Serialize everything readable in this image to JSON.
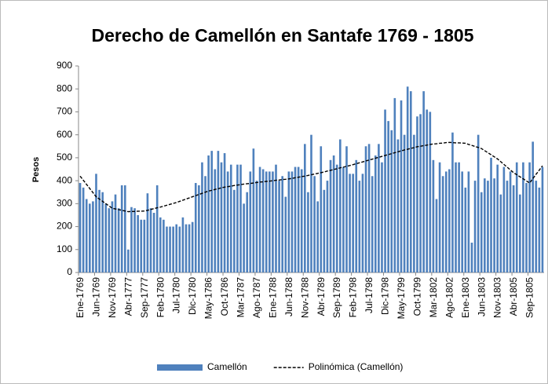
{
  "chart_data": {
    "type": "bar",
    "title": "Derecho de Camellón en Santafe 1769 - 1805",
    "y_label": "Pesos",
    "categories": [
      "Ene-1769",
      null,
      null,
      null,
      null,
      "Jun-1769",
      null,
      null,
      null,
      null,
      "Nov-1769",
      null,
      null,
      null,
      null,
      "Abr-1777",
      null,
      null,
      null,
      null,
      "Sep-1777",
      null,
      null,
      null,
      null,
      "Feb-1780",
      null,
      null,
      null,
      null,
      "Jul-1780",
      null,
      null,
      null,
      null,
      "Dic-1780",
      null,
      null,
      null,
      null,
      "May-1786",
      null,
      null,
      null,
      null,
      "Oct-1786",
      null,
      null,
      null,
      null,
      "Mar-1787",
      null,
      null,
      null,
      null,
      "Ago-1787",
      null,
      null,
      null,
      null,
      "Ene-1788",
      null,
      null,
      null,
      null,
      "Jun-1788",
      null,
      null,
      null,
      null,
      "Nov-1788",
      null,
      null,
      null,
      null,
      "Abr-1789",
      null,
      null,
      null,
      null,
      "Sep-1789",
      null,
      null,
      null,
      null,
      "Feb-1798",
      null,
      null,
      null,
      null,
      "Jul-1798",
      null,
      null,
      null,
      null,
      "Dic-1798",
      null,
      null,
      null,
      null,
      "May-1799",
      null,
      null,
      null,
      null,
      "Oct-1799",
      null,
      null,
      null,
      null,
      "Mar-1802",
      null,
      null,
      null,
      null,
      "Ago-1802",
      null,
      null,
      null,
      null,
      "Ene-1803",
      null,
      null,
      null,
      null,
      "Jun-1803",
      null,
      null,
      null,
      null,
      "Nov-1803",
      null,
      null,
      null,
      null,
      "Abr-1805",
      null,
      null,
      null,
      null,
      "Sep-1805",
      null,
      null,
      null,
      null
    ],
    "series": [
      {
        "name": "Camellón",
        "type": "bar",
        "color": "#4f81bd",
        "values": [
          390,
          370,
          320,
          300,
          310,
          430,
          360,
          350,
          300,
          280,
          310,
          340,
          280,
          380,
          380,
          100,
          285,
          280,
          250,
          230,
          230,
          345,
          280,
          260,
          380,
          240,
          230,
          200,
          200,
          200,
          210,
          200,
          240,
          210,
          210,
          220,
          390,
          380,
          480,
          420,
          510,
          530,
          450,
          530,
          480,
          520,
          440,
          470,
          360,
          470,
          470,
          300,
          350,
          440,
          540,
          400,
          460,
          450,
          440,
          440,
          440,
          470,
          400,
          420,
          330,
          440,
          440,
          460,
          460,
          450,
          560,
          350,
          600,
          420,
          310,
          550,
          360,
          400,
          490,
          510,
          470,
          580,
          460,
          550,
          430,
          430,
          490,
          400,
          430,
          550,
          560,
          420,
          510,
          560,
          480,
          710,
          660,
          620,
          760,
          580,
          750,
          600,
          810,
          790,
          600,
          680,
          690,
          790,
          710,
          700,
          490,
          320,
          480,
          420,
          440,
          450,
          610,
          480,
          480,
          440,
          370,
          440,
          130,
          400,
          600,
          350,
          410,
          400,
          500,
          410,
          470,
          340,
          460,
          400,
          440,
          380,
          480,
          340,
          480,
          390,
          480,
          570,
          400,
          370,
          460
        ]
      },
      {
        "name": "Polinómica (Camellón)",
        "type": "line",
        "dashed": true,
        "color": "#000000",
        "values": [
          420,
          402,
          384,
          366,
          348,
          330,
          320,
          310,
          300,
          290,
          280,
          277,
          274,
          271,
          268,
          265,
          266,
          266,
          267,
          267,
          268,
          271,
          275,
          278,
          282,
          285,
          289,
          293,
          297,
          301,
          305,
          310,
          315,
          320,
          325,
          330,
          335,
          340,
          345,
          350,
          355,
          358,
          362,
          365,
          369,
          372,
          374,
          376,
          379,
          381,
          383,
          385,
          387,
          388,
          390,
          392,
          394,
          395,
          397,
          398,
          400,
          402,
          403,
          405,
          406,
          408,
          410,
          413,
          415,
          418,
          420,
          423,
          426,
          429,
          432,
          435,
          438,
          442,
          445,
          449,
          452,
          456,
          459,
          463,
          466,
          470,
          474,
          478,
          482,
          486,
          490,
          494,
          498,
          502,
          506,
          510,
          514,
          518,
          522,
          526,
          530,
          534,
          537,
          541,
          544,
          548,
          550,
          553,
          555,
          558,
          560,
          561,
          563,
          564,
          566,
          567,
          566,
          565,
          565,
          564,
          563,
          558,
          554,
          549,
          545,
          540,
          531,
          522,
          513,
          504,
          495,
          483,
          471,
          459,
          447,
          435,
          426,
          417,
          408,
          399,
          390,
          409,
          428,
          446,
          465
        ]
      }
    ],
    "ylim": [
      0,
      900
    ],
    "yticks": [
      0,
      100,
      200,
      300,
      400,
      500,
      600,
      700,
      800,
      900
    ],
    "grid": false,
    "legend": "bottom"
  }
}
